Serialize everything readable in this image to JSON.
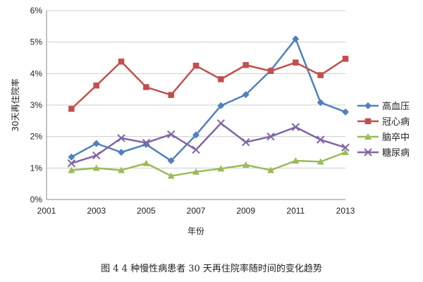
{
  "caption": "图 4   4 种慢性病患者 30 天再住院率随时间的变化趋势",
  "chart_data": {
    "type": "line",
    "xlabel": "年份",
    "ylabel": "30天再住院率",
    "xlim": [
      2001,
      2013
    ],
    "x_ticks": [
      2001,
      2003,
      2005,
      2007,
      2009,
      2011,
      2013
    ],
    "ylim": [
      0,
      6
    ],
    "y_ticks": [
      "0%",
      "1%",
      "2%",
      "3%",
      "4%",
      "5%",
      "6%"
    ],
    "y_tick_values": [
      0,
      1,
      2,
      3,
      4,
      5,
      6
    ],
    "grid": "horizontal",
    "legend_position": "right",
    "x": [
      2002,
      2003,
      2004,
      2005,
      2006,
      2007,
      2008,
      2009,
      2010,
      2011,
      2012,
      2013
    ],
    "series": [
      {
        "name": "高血压",
        "color": "#4f81bd",
        "marker": "diamond",
        "values": [
          1.35,
          1.78,
          1.5,
          1.75,
          1.23,
          2.05,
          2.98,
          3.33,
          4.1,
          5.1,
          3.08,
          2.78
        ]
      },
      {
        "name": "冠心病",
        "color": "#c0504d",
        "marker": "square",
        "values": [
          2.88,
          3.62,
          4.38,
          3.57,
          3.32,
          4.25,
          3.82,
          4.27,
          4.08,
          4.35,
          3.95,
          4.47
        ]
      },
      {
        "name": "脑卒中",
        "color": "#9bbb59",
        "marker": "triangle",
        "values": [
          0.93,
          1.0,
          0.93,
          1.15,
          0.75,
          0.88,
          0.98,
          1.1,
          0.93,
          1.23,
          1.2,
          1.5
        ]
      },
      {
        "name": "糖尿病",
        "color": "#8064a2",
        "marker": "x",
        "values": [
          1.15,
          1.4,
          1.95,
          1.8,
          2.07,
          1.58,
          2.42,
          1.82,
          2.0,
          2.3,
          1.9,
          1.65
        ]
      }
    ]
  }
}
